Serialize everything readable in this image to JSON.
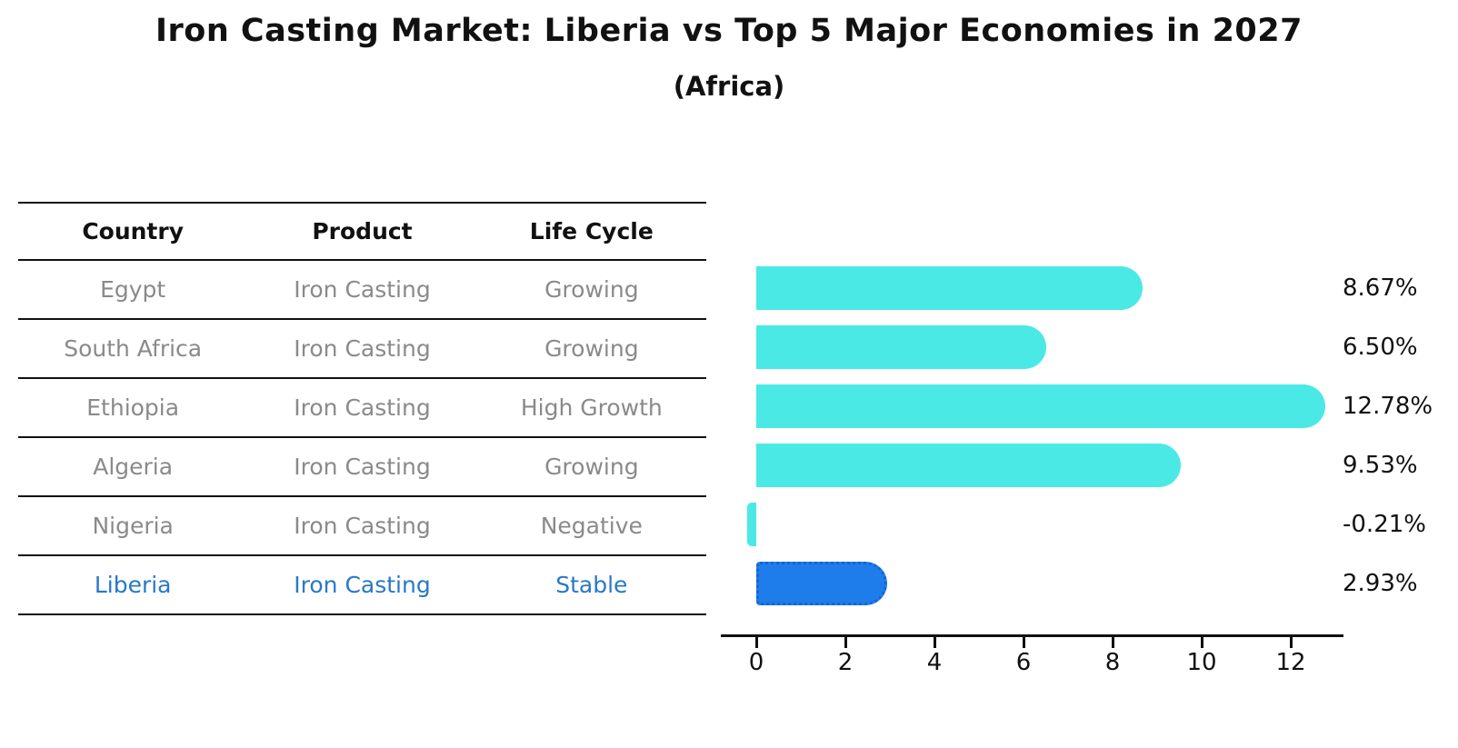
{
  "title": "Iron Casting Market: Liberia vs Top 5 Major Economies in 2027",
  "subtitle": "(Africa)",
  "table": {
    "headers": [
      "Country",
      "Product",
      "Life Cycle"
    ],
    "rows": [
      {
        "country": "Egypt",
        "product": "Iron Casting",
        "life_cycle": "Growing",
        "highlight": false
      },
      {
        "country": "South Africa",
        "product": "Iron Casting",
        "life_cycle": "Growing",
        "highlight": false
      },
      {
        "country": "Ethiopia",
        "product": "Iron Casting",
        "life_cycle": "High Growth",
        "highlight": false
      },
      {
        "country": "Algeria",
        "product": "Iron Casting",
        "life_cycle": "Growing",
        "highlight": false
      },
      {
        "country": "Nigeria",
        "product": "Iron Casting",
        "life_cycle": "Negative",
        "highlight": false
      },
      {
        "country": "Liberia",
        "product": "Iron Casting",
        "life_cycle": "Stable",
        "highlight": true
      }
    ]
  },
  "chart_data": {
    "type": "bar",
    "orientation": "horizontal",
    "categories": [
      "Egypt",
      "South Africa",
      "Ethiopia",
      "Algeria",
      "Nigeria",
      "Liberia"
    ],
    "values": [
      8.67,
      6.5,
      12.78,
      9.53,
      -0.21,
      2.93
    ],
    "value_labels": [
      "8.67%",
      "6.50%",
      "12.78%",
      "9.53%",
      "-0.21%",
      "2.93%"
    ],
    "highlight_index": 5,
    "xticks": [
      0,
      2,
      4,
      6,
      8,
      10,
      12
    ],
    "xlim": [
      -0.8,
      13.2
    ],
    "title": "Iron Casting Market: Liberia vs Top 5 Major Economies in 2027 (Africa)",
    "xlabel": "",
    "ylabel": "",
    "grid": false,
    "legend": false
  },
  "colors": {
    "bar_default": "#4AE9E5",
    "bar_highlight": "#1E7DEB",
    "highlight_text": "#2878C9",
    "table_text": "#8a8a8a",
    "text": "#111111"
  }
}
